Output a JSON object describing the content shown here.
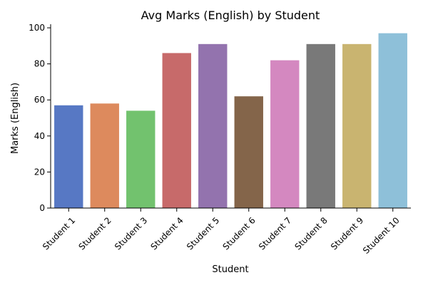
{
  "chart_data": {
    "type": "bar",
    "title": "Avg Marks (English) by Student",
    "xlabel": "Student",
    "ylabel": "Marks (English)",
    "categories": [
      "Student 1",
      "Student 2",
      "Student 3",
      "Student 4",
      "Student 5",
      "Student 6",
      "Student 7",
      "Student 8",
      "Student 9",
      "Student 10"
    ],
    "values": [
      57,
      58,
      54,
      86,
      91,
      62,
      82,
      91,
      91,
      97
    ],
    "colors": [
      "#5778c4",
      "#dd8a5d",
      "#72c26e",
      "#c76a6a",
      "#9373ae",
      "#84654a",
      "#d488c0",
      "#797979",
      "#c9b470",
      "#8ec0d9"
    ],
    "ylim": [
      0,
      102
    ],
    "yticks": [
      0,
      20,
      40,
      60,
      80,
      100
    ],
    "grid": false,
    "legend": "none"
  }
}
